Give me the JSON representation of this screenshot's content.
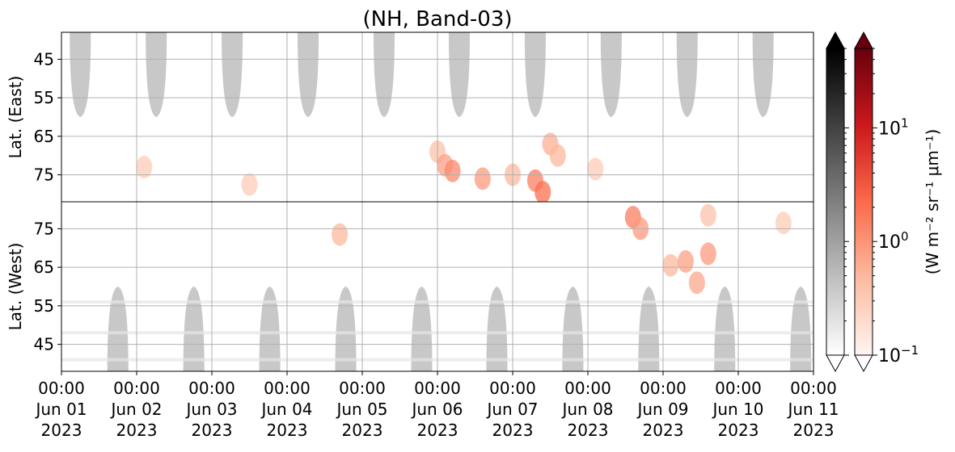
{
  "chart_data": {
    "type": "heatmap",
    "title": "(NH, Band-03)",
    "panels": [
      {
        "name": "east",
        "ylabel": "Lat. (East)",
        "yticks": [
          45,
          55,
          65,
          75
        ],
        "ylim": [
          38,
          82
        ],
        "y_direction": "down"
      },
      {
        "name": "west",
        "ylabel": "Lat. (West)",
        "yticks": [
          75,
          65,
          55,
          45
        ],
        "ylim": [
          82,
          38
        ],
        "y_direction": "up"
      }
    ],
    "x_ticks": [
      {
        "time": "Jun 01 00:00",
        "l1": "00:00",
        "l2": "Jun 01",
        "l3": "2023"
      },
      {
        "time": "Jun 02 00:00",
        "l1": "00:00",
        "l2": "Jun 02",
        "l3": "2023"
      },
      {
        "time": "Jun 03 00:00",
        "l1": "00:00",
        "l2": "Jun 03",
        "l3": "2023"
      },
      {
        "time": "Jun 04 00:00",
        "l1": "00:00",
        "l2": "Jun 04",
        "l3": "2023"
      },
      {
        "time": "Jun 05 00:00",
        "l1": "00:00",
        "l2": "Jun 05",
        "l3": "2023"
      },
      {
        "time": "Jun 06 00:00",
        "l1": "00:00",
        "l2": "Jun 06",
        "l3": "2023"
      },
      {
        "time": "Jun 07 00:00",
        "l1": "00:00",
        "l2": "Jun 07",
        "l3": "2023"
      },
      {
        "time": "Jun 08 00:00",
        "l1": "00:00",
        "l2": "Jun 08",
        "l3": "2023"
      },
      {
        "time": "Jun 09 00:00",
        "l1": "00:00",
        "l2": "Jun 09",
        "l3": "2023"
      },
      {
        "time": "Jun 10 00:00",
        "l1": "00:00",
        "l2": "Jun 10",
        "l3": "2023"
      },
      {
        "time": "Jun 11 00:00",
        "l1": "00:00",
        "l2": "Jun 11",
        "l3": "2023"
      }
    ],
    "xlim": [
      "2023-06-01 00:00",
      "2023-06-11 00:00"
    ],
    "grid": true,
    "colorbar": {
      "label": "(W m⁻² sr⁻¹ μm⁻¹)",
      "scale": "log",
      "range": [
        0.1,
        50
      ],
      "ticks": [
        {
          "value": 0.1,
          "base": "10",
          "exp": "−1"
        },
        {
          "value": 1,
          "base": "10",
          "exp": "0"
        },
        {
          "value": 10,
          "base": "10",
          "exp": "1"
        }
      ],
      "grey_cmap": [
        "#ffffff",
        "#000000"
      ],
      "red_cmap": [
        "#fff5f0",
        "#fcbba1",
        "#fb6a4a",
        "#cb181d",
        "#67000d"
      ]
    },
    "night_mask": {
      "color": "#c8c8c8",
      "east": {
        "centers_day": [
          0.25,
          1.26,
          2.27,
          3.28,
          4.29,
          5.29,
          6.3,
          7.31,
          8.32,
          9.33
        ],
        "half_width_day": 0.14,
        "min_lat": 60
      },
      "west": {
        "centers_day": [
          0.75,
          1.76,
          2.77,
          3.78,
          4.79,
          5.79,
          6.8,
          7.81,
          8.82,
          9.83
        ],
        "half_width_day": 0.14,
        "min_lat": 60
      }
    },
    "radiance_patches": [
      {
        "panel": "east",
        "day": 5.0,
        "lat": 69.0,
        "value": 0.4
      },
      {
        "panel": "east",
        "day": 5.1,
        "lat": 72.5,
        "value": 0.8
      },
      {
        "panel": "east",
        "day": 5.2,
        "lat": 74.0,
        "value": 1.2
      },
      {
        "panel": "east",
        "day": 5.6,
        "lat": 76.0,
        "value": 0.9
      },
      {
        "panel": "east",
        "day": 6.0,
        "lat": 75.0,
        "value": 0.5
      },
      {
        "panel": "east",
        "day": 6.3,
        "lat": 76.5,
        "value": 1.5
      },
      {
        "panel": "east",
        "day": 6.4,
        "lat": 79.5,
        "value": 2.0
      },
      {
        "panel": "east",
        "day": 6.5,
        "lat": 67.0,
        "value": 0.6
      },
      {
        "panel": "east",
        "day": 6.6,
        "lat": 70.0,
        "value": 0.5
      },
      {
        "panel": "east",
        "day": 7.1,
        "lat": 73.5,
        "value": 0.3
      },
      {
        "panel": "east",
        "day": 1.1,
        "lat": 73.0,
        "value": 0.3
      },
      {
        "panel": "east",
        "day": 2.5,
        "lat": 77.5,
        "value": 0.3
      },
      {
        "panel": "west",
        "day": 3.7,
        "lat": 73.5,
        "value": 0.5
      },
      {
        "panel": "west",
        "day": 7.6,
        "lat": 78.0,
        "value": 1.5
      },
      {
        "panel": "west",
        "day": 7.7,
        "lat": 75.0,
        "value": 0.9
      },
      {
        "panel": "west",
        "day": 8.1,
        "lat": 65.5,
        "value": 0.5
      },
      {
        "panel": "west",
        "day": 8.3,
        "lat": 66.5,
        "value": 0.8
      },
      {
        "panel": "west",
        "day": 8.45,
        "lat": 61.0,
        "value": 0.7
      },
      {
        "panel": "west",
        "day": 8.6,
        "lat": 68.5,
        "value": 0.9
      },
      {
        "panel": "west",
        "day": 8.6,
        "lat": 78.5,
        "value": 0.4
      },
      {
        "panel": "west",
        "day": 9.6,
        "lat": 76.5,
        "value": 0.3
      }
    ],
    "bottom_left_stripes": {
      "panel": "west",
      "lats": [
        56,
        48,
        41
      ],
      "day_range": [
        0,
        10
      ],
      "value": 0.15
    }
  }
}
